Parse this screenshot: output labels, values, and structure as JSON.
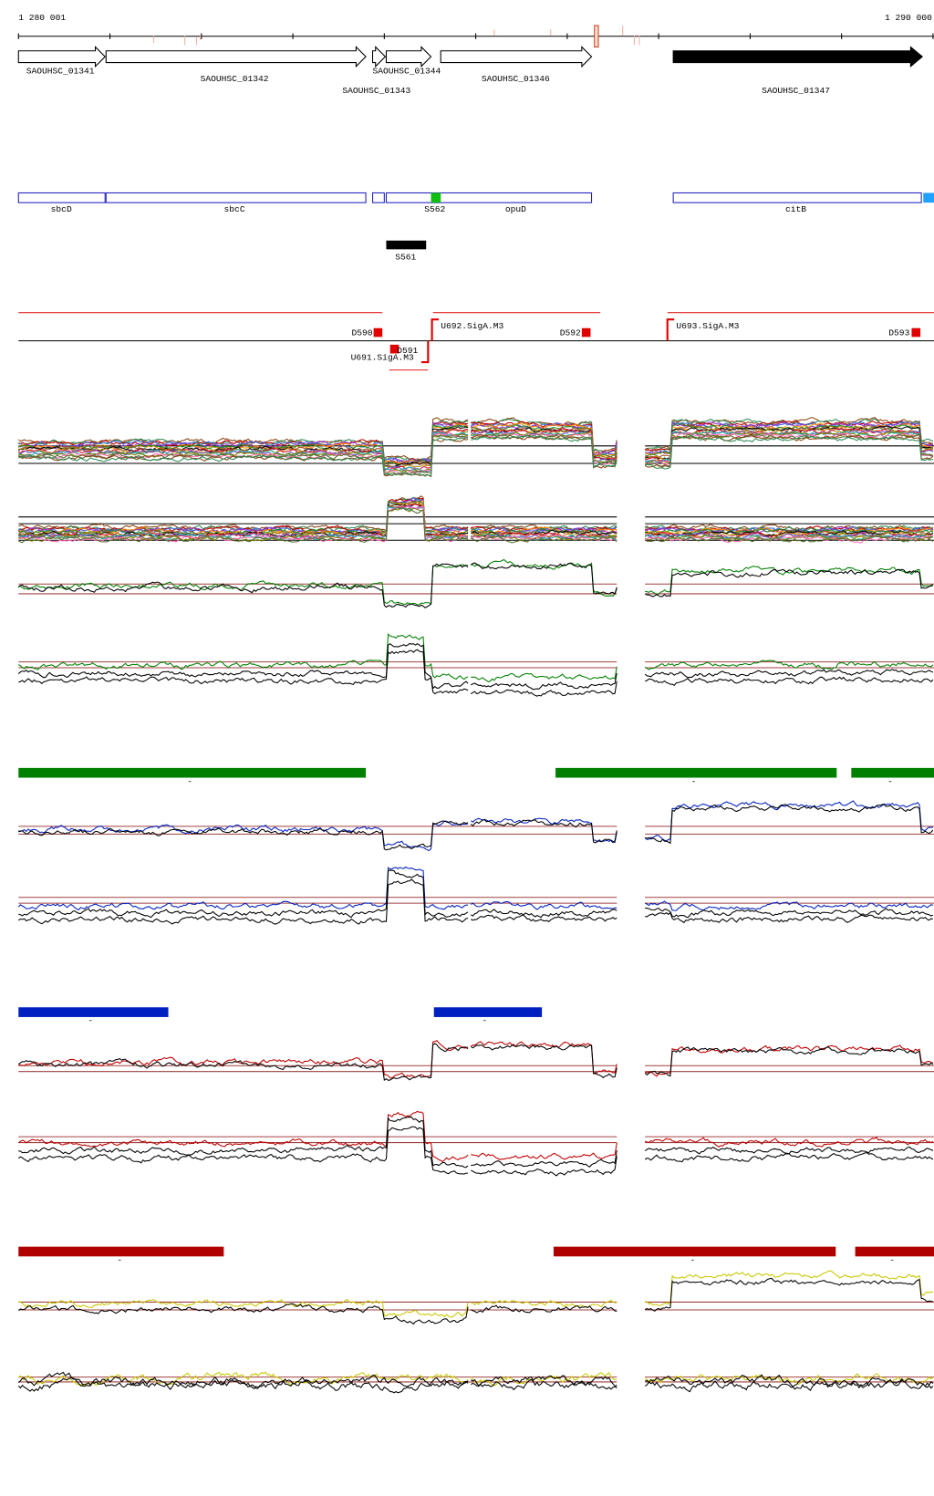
{
  "ruler": {
    "start": "1 280 001",
    "end": "1 290 000"
  },
  "genes": [
    "SAOUHSC_01341",
    "SAOUHSC_01342",
    "SAOUHSC_01343",
    "SAOUHSC_01344",
    "SAOUHSC_01346",
    "SAOUHSC_01347"
  ],
  "annotations": [
    "sbcD",
    "sbcC",
    "S562",
    "opuD",
    "citB"
  ],
  "segments": [
    "S561"
  ],
  "regulation": [
    "D590",
    "D591",
    "U691.SigA.M3",
    "U692.SigA.M3",
    "D592",
    "U693.SigA.M3",
    "D593"
  ],
  "cluster_marks": [
    "-",
    "-",
    "-",
    "-",
    "-",
    "-",
    "-",
    "-"
  ]
}
